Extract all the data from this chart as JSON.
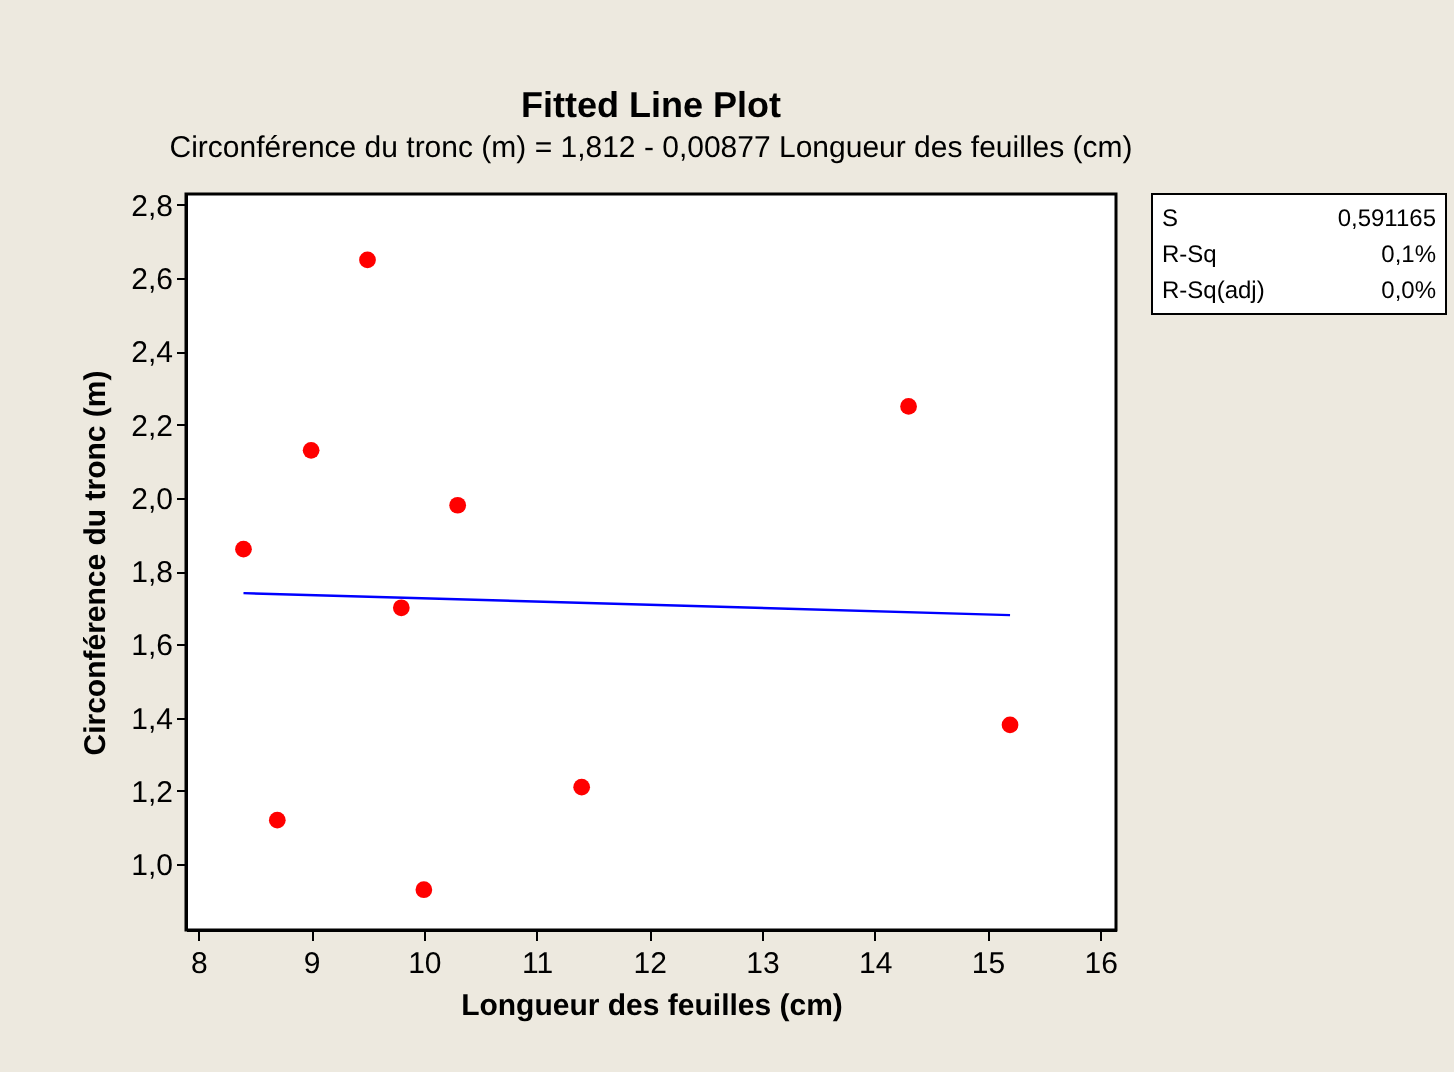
{
  "chart_data": {
    "type": "scatter",
    "title": "Fitted Line Plot",
    "subtitle": "Circonférence du tronc  (m) =  1,812 - 0,00877 Longueur des feuilles (cm)",
    "xlabel": "Longueur des feuilles (cm)",
    "ylabel": "Circonférence du tronc  (m)",
    "series": [
      {
        "color": "#ff0000",
        "marker": "circle",
        "x": [
          8.4,
          8.7,
          9.0,
          9.5,
          9.8,
          10.0,
          10.3,
          11.4,
          14.3,
          15.2
        ],
        "values": [
          1.86,
          1.12,
          2.13,
          2.65,
          1.7,
          0.93,
          1.98,
          1.21,
          2.25,
          1.38
        ]
      },
      {
        "type": "line",
        "color": "#0000ff",
        "x": [
          8.4,
          15.2
        ],
        "values": [
          1.74,
          1.68
        ]
      }
    ],
    "xlim": [
      7.89,
      16.14
    ],
    "ylim": [
      0.82,
      2.83
    ],
    "xticks": [
      8,
      9,
      10,
      11,
      12,
      13,
      14,
      15,
      16
    ],
    "yticks": [
      {
        "value": 1.0,
        "label": "1,0"
      },
      {
        "value": 1.2,
        "label": "1,2"
      },
      {
        "value": 1.4,
        "label": "1,4"
      },
      {
        "value": 1.6,
        "label": "1,6"
      },
      {
        "value": 1.8,
        "label": "1,8"
      },
      {
        "value": 2.0,
        "label": "2,0"
      },
      {
        "value": 2.2,
        "label": "2,2"
      },
      {
        "value": 2.4,
        "label": "2,4"
      },
      {
        "value": 2.6,
        "label": "2,6"
      },
      {
        "value": 2.8,
        "label": "2,8"
      }
    ],
    "annotations": [
      "S",
      "0,591165",
      "R-Sq",
      "0,1%",
      "R-Sq(adj)",
      "0,0%"
    ],
    "grid": false
  }
}
